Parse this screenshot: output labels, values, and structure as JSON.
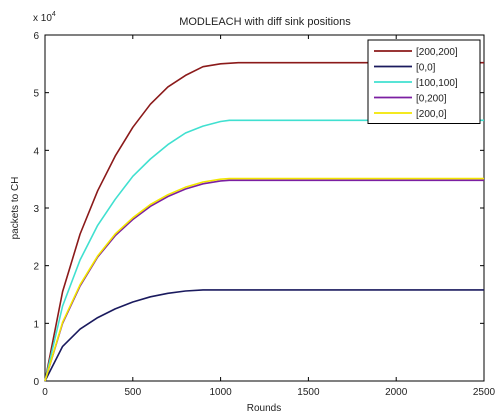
{
  "chart_data": {
    "type": "line",
    "title": "MODLEACH with diff sink positions",
    "xlabel": "Rounds",
    "ylabel": "packets to CH",
    "xlim": [
      0,
      2500
    ],
    "ylim": [
      0,
      6
    ],
    "y_multiplier_label": "x 10",
    "y_multiplier_exp": "4",
    "xticks": [
      0,
      500,
      1000,
      1500,
      2000,
      2500
    ],
    "yticks": [
      0,
      1,
      2,
      3,
      4,
      5,
      6
    ],
    "legend_location": "top-right",
    "grid": false,
    "series": [
      {
        "name": "[200,200]",
        "color": "#8b1a1a",
        "x": [
          0,
          100,
          200,
          300,
          400,
          500,
          600,
          700,
          800,
          900,
          1000,
          1100,
          2500
        ],
        "y": [
          0,
          1.55,
          2.55,
          3.3,
          3.9,
          4.4,
          4.8,
          5.1,
          5.3,
          5.45,
          5.5,
          5.52,
          5.52
        ]
      },
      {
        "name": "[0,0]",
        "color": "#1a1a5e",
        "x": [
          0,
          100,
          200,
          300,
          400,
          500,
          600,
          700,
          800,
          900,
          1000,
          2500
        ],
        "y": [
          0,
          0.6,
          0.9,
          1.1,
          1.25,
          1.37,
          1.46,
          1.52,
          1.56,
          1.58,
          1.58,
          1.58
        ]
      },
      {
        "name": "[100,100]",
        "color": "#40e0d0",
        "x": [
          0,
          100,
          200,
          300,
          400,
          500,
          600,
          700,
          800,
          900,
          1000,
          1050,
          2500
        ],
        "y": [
          0,
          1.3,
          2.1,
          2.7,
          3.15,
          3.55,
          3.85,
          4.1,
          4.3,
          4.42,
          4.5,
          4.52,
          4.52
        ]
      },
      {
        "name": "[0,200]",
        "color": "#7b1fa2",
        "x": [
          0,
          100,
          200,
          300,
          400,
          500,
          600,
          700,
          800,
          900,
          1000,
          1050,
          2500
        ],
        "y": [
          0,
          1.0,
          1.65,
          2.15,
          2.52,
          2.8,
          3.03,
          3.2,
          3.33,
          3.42,
          3.47,
          3.48,
          3.48
        ]
      },
      {
        "name": "[200,0]",
        "color": "#f2e600",
        "x": [
          0,
          100,
          200,
          300,
          400,
          500,
          600,
          700,
          800,
          900,
          1000,
          1050,
          2500
        ],
        "y": [
          0,
          1.02,
          1.67,
          2.17,
          2.55,
          2.83,
          3.06,
          3.23,
          3.36,
          3.45,
          3.5,
          3.51,
          3.51
        ]
      }
    ]
  }
}
